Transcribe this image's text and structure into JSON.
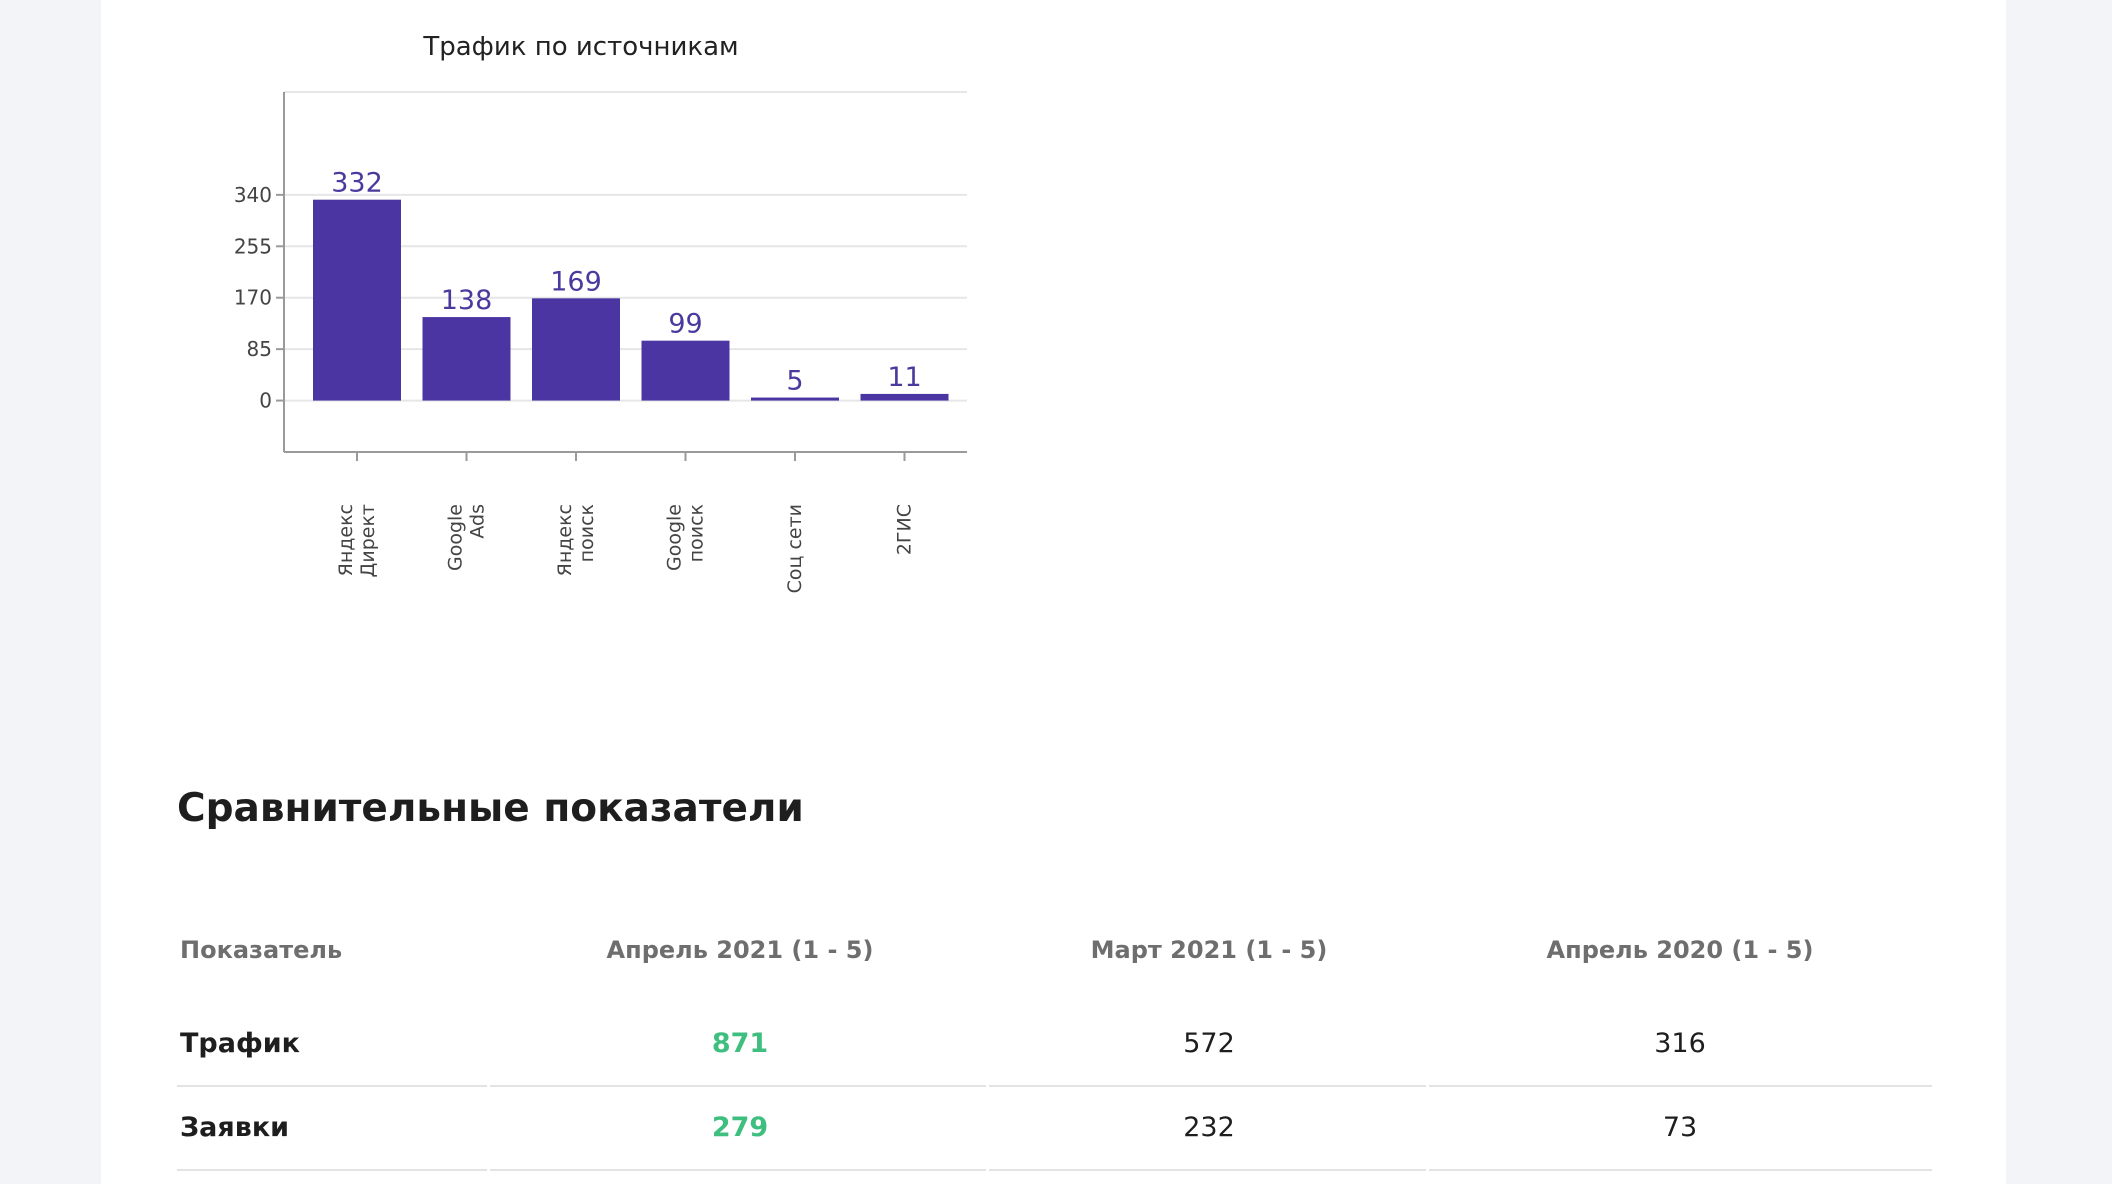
{
  "chart_data": {
    "type": "bar",
    "title": "Трафик по источникам",
    "categories": [
      [
        "Яндекс",
        "Директ"
      ],
      [
        "Google",
        "Ads"
      ],
      [
        "Яндекс",
        "поиск"
      ],
      [
        "Google",
        "поиск"
      ],
      [
        "Соц сети"
      ],
      [
        "2ГИС"
      ]
    ],
    "values": [
      332,
      138,
      169,
      99,
      5,
      11
    ],
    "yticks": [
      "0",
      "85",
      "170",
      "255",
      "340"
    ],
    "ylim": [
      -85,
      510
    ],
    "grid": true,
    "bar_color": "#4b35a2"
  },
  "comparison": {
    "title": "Сравнительные показатели",
    "headers": [
      "Показатель",
      "Апрель 2021 (1 - 5)",
      "Март 2021 (1 - 5)",
      "Апрель 2020 (1 - 5)"
    ],
    "rows": [
      {
        "label": "Трафик",
        "values": [
          "871",
          "572",
          "316"
        ]
      },
      {
        "label": "Заявки",
        "values": [
          "279",
          "232",
          "73"
        ]
      }
    ],
    "accent_color": "#3fbf7f"
  }
}
